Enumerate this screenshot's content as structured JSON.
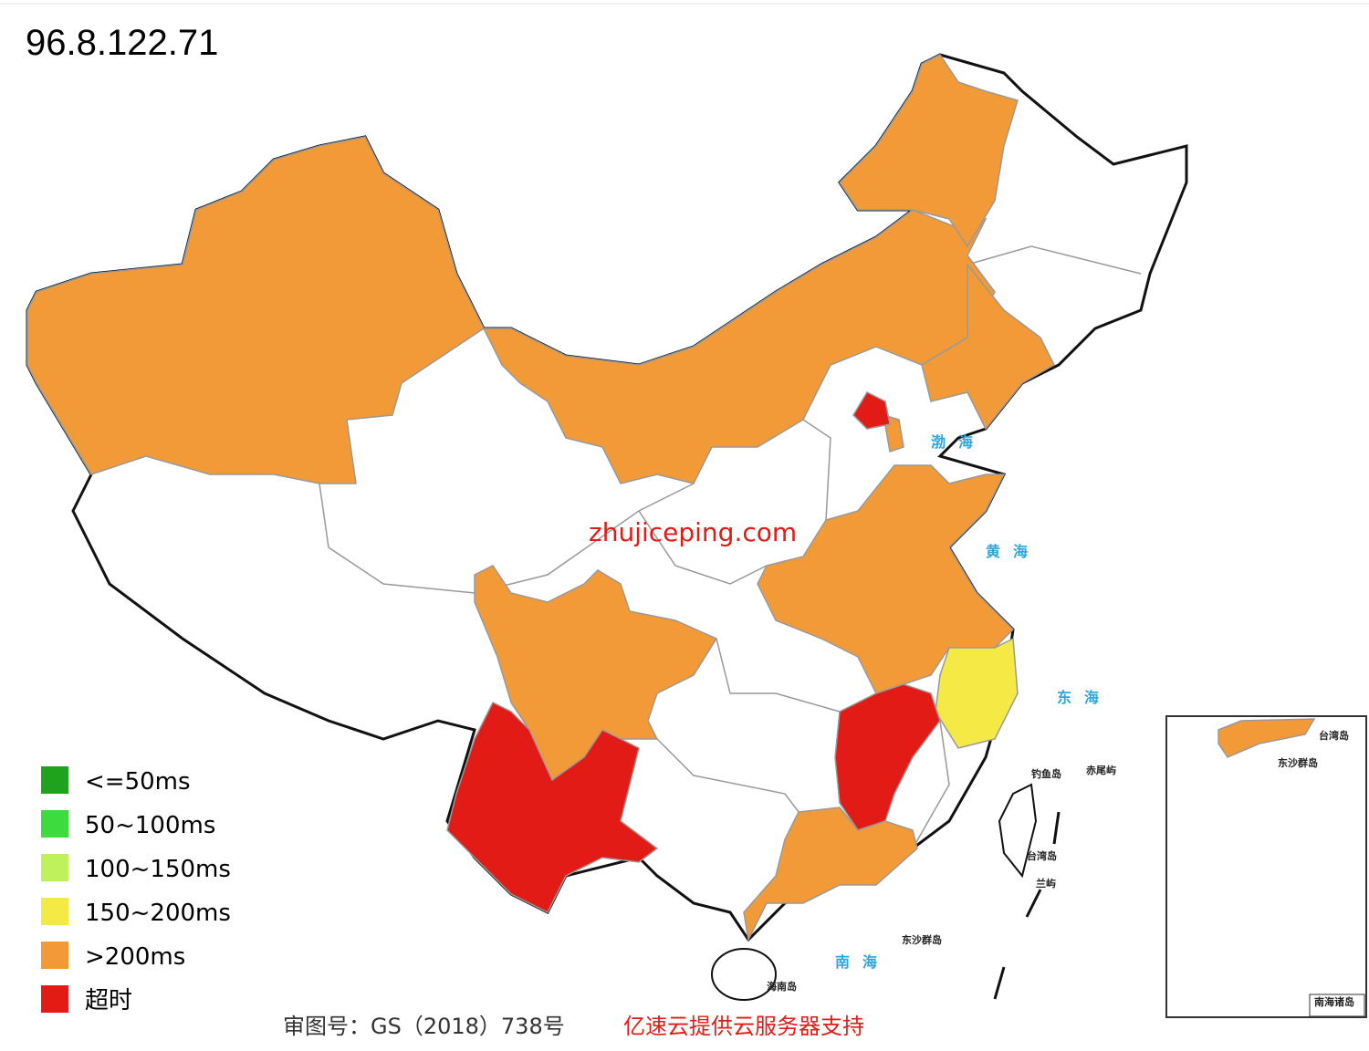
{
  "header": {
    "title": "96.8.122.71"
  },
  "watermark": "zhujiceping.com",
  "legend": {
    "items": [
      {
        "label": "<=50ms",
        "color": "#1fa31f"
      },
      {
        "label": "50~100ms",
        "color": "#3ddc3d"
      },
      {
        "label": "100~150ms",
        "color": "#bff25a"
      },
      {
        "label": "150~200ms",
        "color": "#f5e946"
      },
      {
        "label": ">200ms",
        "color": "#f39a38"
      },
      {
        "label": "超时",
        "color": "#e21b16"
      }
    ]
  },
  "map_labels": {
    "seas": [
      "渤海",
      "黄海",
      "东海",
      "南海"
    ],
    "islands": [
      "钓鱼岛",
      "赤尾屿",
      "台湾岛",
      "兰屿",
      "东沙群岛",
      "海南岛"
    ],
    "inset": [
      "台湾岛",
      "东沙群岛",
      "南海诸岛"
    ]
  },
  "footer": {
    "approval": "审图号：GS（2018）738号",
    "sponsor": "亿速云提供云服务器支持"
  }
}
